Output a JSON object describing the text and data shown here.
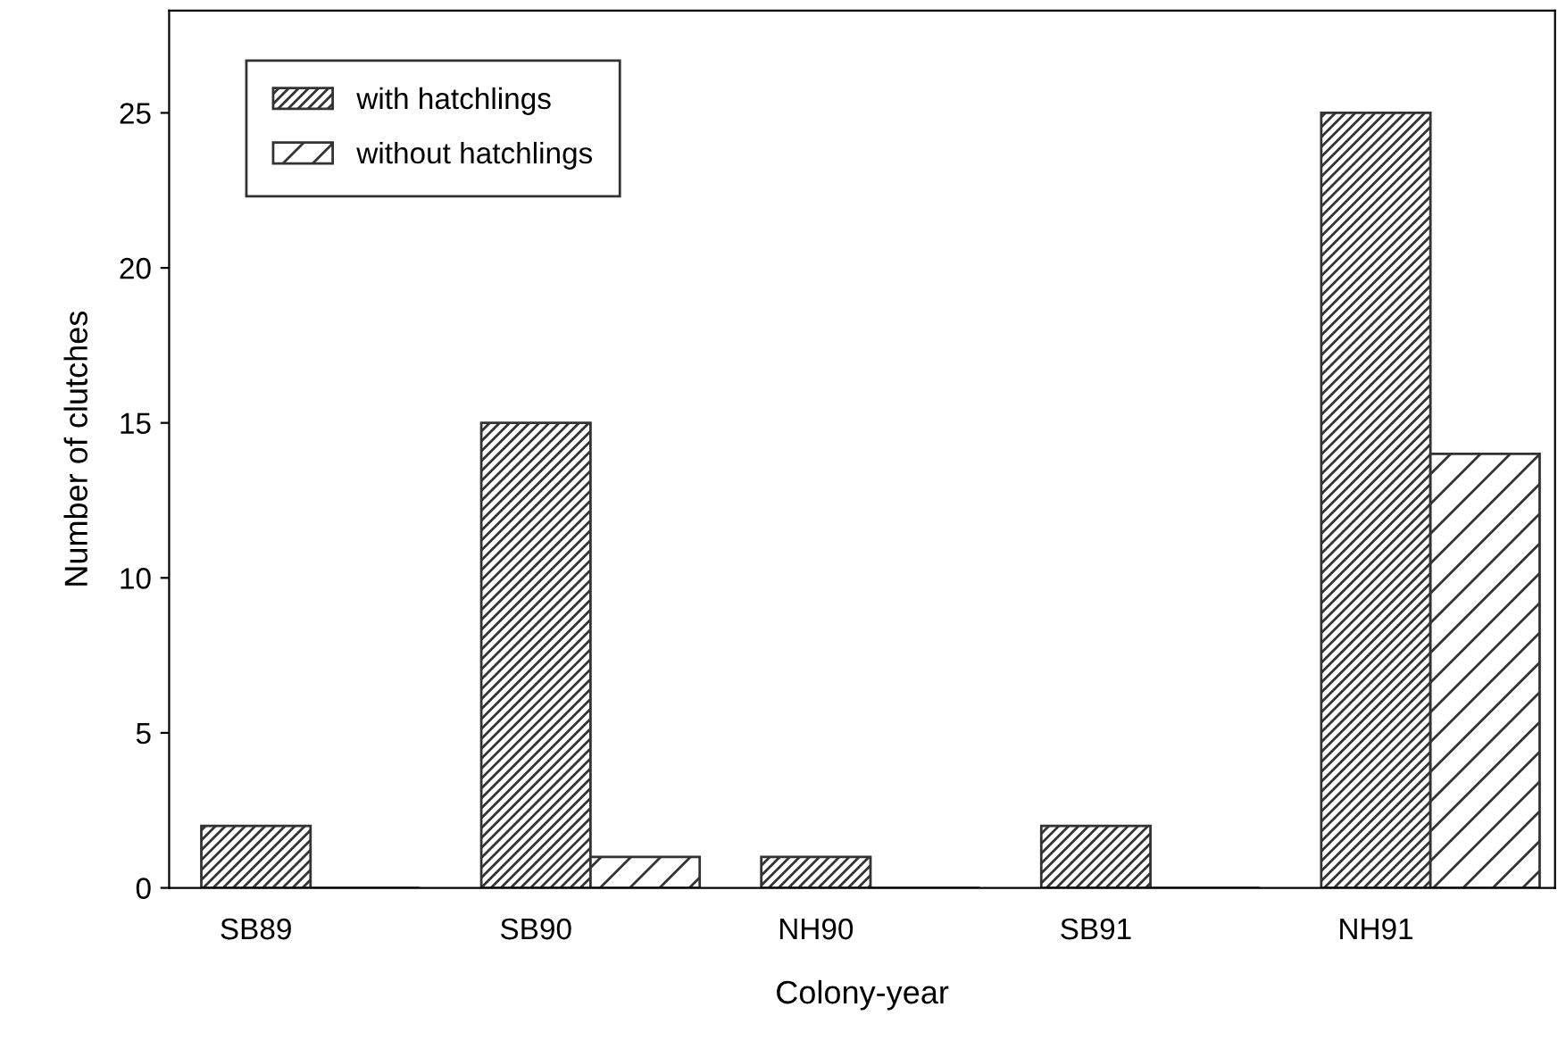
{
  "chart_data": {
    "type": "bar",
    "xlabel": "Colony-year",
    "ylabel": "Number of clutches",
    "categories": [
      "SB89",
      "SB90",
      "NH90",
      "SB91",
      "NH91"
    ],
    "series": [
      {
        "name": "with hatchlings",
        "color": "#333333",
        "values": [
          2,
          15,
          1,
          2,
          25
        ]
      },
      {
        "name": "without hatchlings",
        "color": "#333333",
        "values": [
          0,
          1,
          0,
          0,
          14
        ]
      }
    ],
    "ylim": [
      0,
      28.3
    ],
    "yticks": [
      0,
      5,
      10,
      15,
      20,
      25
    ],
    "legend": "top left",
    "grid": false
  }
}
